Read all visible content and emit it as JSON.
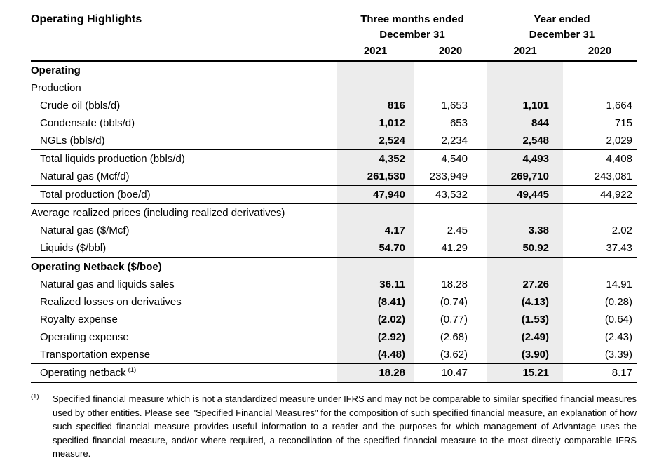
{
  "title": "Operating Highlights",
  "table": {
    "col_groups": [
      {
        "line1": "Three months ended",
        "line2": "December 31"
      },
      {
        "line1": "Year ended",
        "line2": "December 31"
      }
    ],
    "year_headers": [
      "2021",
      "2020",
      "2021",
      "2020"
    ],
    "rows": [
      {
        "label": "Operating",
        "bold_label": true,
        "indent": false,
        "values": [
          "",
          "",
          "",
          ""
        ]
      },
      {
        "label": "Production",
        "bold_label": false,
        "indent": false,
        "values": [
          "",
          "",
          "",
          ""
        ]
      },
      {
        "label": "Crude oil (bbls/d)",
        "bold_label": false,
        "indent": true,
        "values": [
          "816",
          "1,653",
          "1,101",
          "1,664"
        ]
      },
      {
        "label": "Condensate (bbls/d)",
        "bold_label": false,
        "indent": true,
        "values": [
          "1,012",
          "653",
          "844",
          "715"
        ]
      },
      {
        "label": "NGLs (bbls/d)",
        "bold_label": false,
        "indent": true,
        "values": [
          "2,524",
          "2,234",
          "2,548",
          "2,029"
        ]
      },
      {
        "label": "Total liquids production (bbls/d)",
        "bold_label": false,
        "indent": true,
        "bt": "thin",
        "values": [
          "4,352",
          "4,540",
          "4,493",
          "4,408"
        ]
      },
      {
        "label": "Natural gas (Mcf/d)",
        "bold_label": false,
        "indent": true,
        "values": [
          "261,530",
          "233,949",
          "269,710",
          "243,081"
        ]
      },
      {
        "label": "Total production (boe/d)",
        "bold_label": false,
        "indent": true,
        "bt": "thin",
        "values": [
          "47,940",
          "43,532",
          "49,445",
          "44,922"
        ]
      },
      {
        "label": "Average realized prices (including realized derivatives)",
        "bold_label": false,
        "indent": false,
        "bt": "thin",
        "values": [
          "",
          "",
          "",
          ""
        ]
      },
      {
        "label": "Natural gas ($/Mcf)",
        "bold_label": false,
        "indent": true,
        "values": [
          "4.17",
          "2.45",
          "3.38",
          "2.02"
        ]
      },
      {
        "label": "Liquids ($/bbl)",
        "bold_label": false,
        "indent": true,
        "values": [
          "54.70",
          "41.29",
          "50.92",
          "37.43"
        ]
      },
      {
        "label": "Operating Netback ($/boe)",
        "bold_label": true,
        "indent": false,
        "bt": "thick",
        "values": [
          "",
          "",
          "",
          ""
        ]
      },
      {
        "label": "Natural gas and liquids sales",
        "bold_label": false,
        "indent": true,
        "values": [
          "36.11",
          "18.28",
          "27.26",
          "14.91"
        ]
      },
      {
        "label": "Realized losses on derivatives",
        "bold_label": false,
        "indent": true,
        "values": [
          "(8.41)",
          "(0.74)",
          "(4.13)",
          "(0.28)"
        ]
      },
      {
        "label": "Royalty expense",
        "bold_label": false,
        "indent": true,
        "values": [
          "(2.02)",
          "(0.77)",
          "(1.53)",
          "(0.64)"
        ]
      },
      {
        "label": "Operating expense",
        "bold_label": false,
        "indent": true,
        "values": [
          "(2.92)",
          "(2.68)",
          "(2.49)",
          "(2.43)"
        ]
      },
      {
        "label": "Transportation expense",
        "bold_label": false,
        "indent": true,
        "values": [
          "(4.48)",
          "(3.62)",
          "(3.90)",
          "(3.39)"
        ]
      },
      {
        "label": "Operating netback",
        "sup": "(1)",
        "bold_label": false,
        "indent": true,
        "bt": "thin",
        "bb": "thick",
        "values": [
          "18.28",
          "10.47",
          "15.21",
          "8.17"
        ]
      }
    ]
  },
  "footnote": {
    "marker": "(1)",
    "text": "Specified financial measure which is not a standardized measure under IFRS and may not be comparable to similar specified financial measures used by other entities. Please see \"Specified Financial Measures\" for the composition of such specified financial measure, an explanation of how such specified financial measure provides useful information to a reader and the purposes for which management of Advantage uses the specified financial measure, and/or where required, a reconciliation of the specified financial measure to the most directly comparable IFRS measure."
  },
  "colors": {
    "shade": "#ececec",
    "text": "#000000"
  }
}
